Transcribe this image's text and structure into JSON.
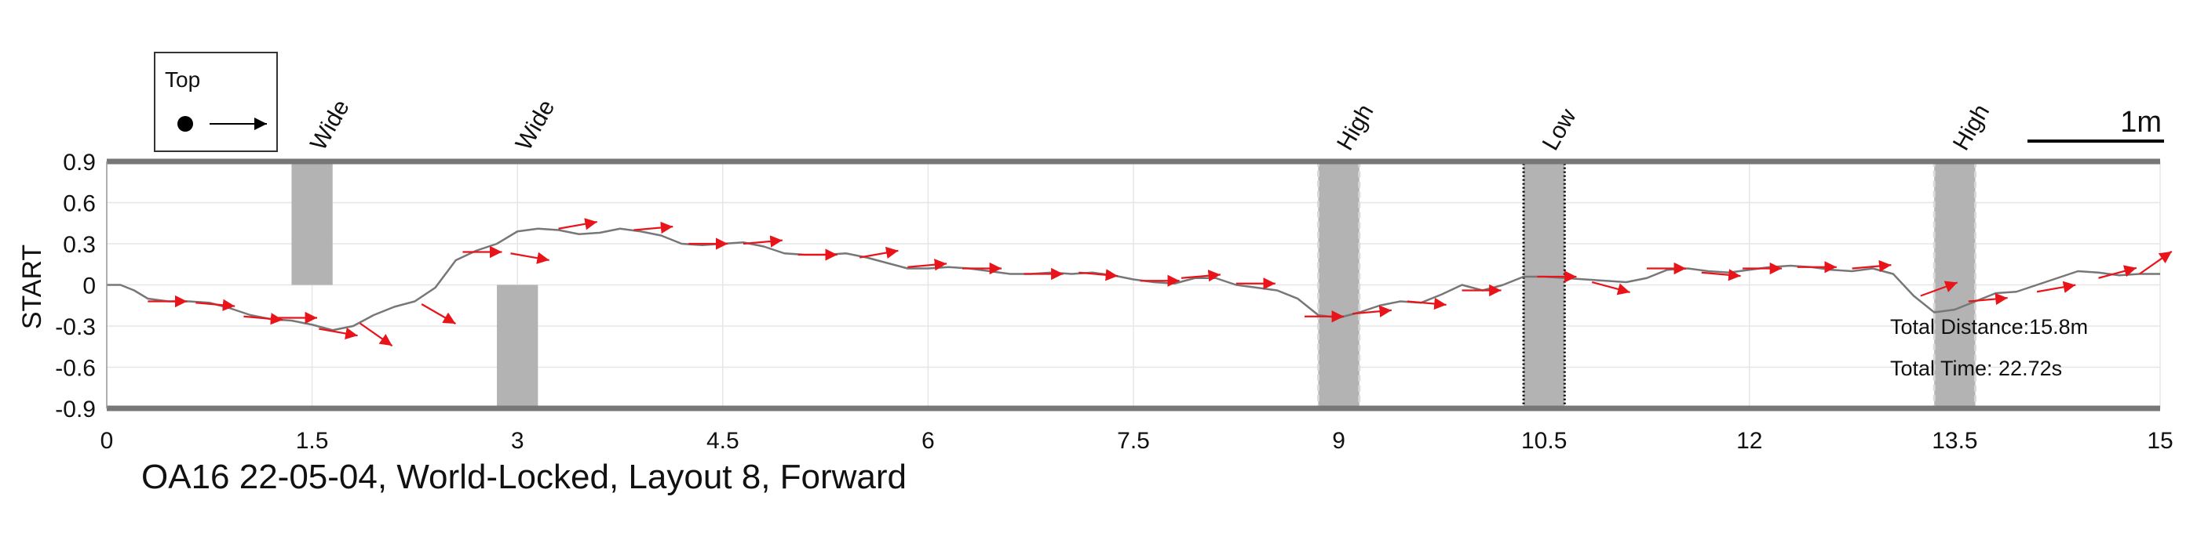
{
  "chart_data": {
    "type": "line",
    "title": "OA16 22-05-04, World-Locked, Layout 8, Forward",
    "ylabel": "START",
    "xlabel": "",
    "xlim": [
      0,
      15
    ],
    "ylim": [
      -0.9,
      0.9
    ],
    "x_ticks": [
      "0",
      "1.5",
      "3",
      "4.5",
      "6",
      "7.5",
      "9",
      "10.5",
      "12",
      "13.5",
      "15"
    ],
    "x_tick_values": [
      0,
      1.5,
      3,
      4.5,
      6,
      7.5,
      9,
      10.5,
      12,
      13.5,
      15
    ],
    "y_ticks": [
      "0.9",
      "0.6",
      "0.3",
      "0",
      "-0.3",
      "-0.6",
      "-0.9"
    ],
    "y_tick_values": [
      0.9,
      0.6,
      0.3,
      0,
      -0.3,
      -0.6,
      -0.9
    ],
    "grid": true,
    "legend": {
      "title": "Top",
      "placement": "top-left"
    },
    "scale_bar_label": "1m",
    "obstacles": [
      {
        "label": "Wide",
        "x_from": 1.35,
        "x_to": 1.65,
        "y_from": 0.0,
        "y_to": 0.9,
        "style": "solid"
      },
      {
        "label": "Wide",
        "x_from": 2.85,
        "x_to": 3.15,
        "y_from": -0.9,
        "y_to": 0.0,
        "style": "solid"
      },
      {
        "label": "High",
        "x_from": 8.85,
        "x_to": 9.15,
        "y_from": -0.9,
        "y_to": 0.9,
        "style": "dashed"
      },
      {
        "label": "Low",
        "x_from": 10.35,
        "x_to": 10.65,
        "y_from": -0.9,
        "y_to": 0.9,
        "style": "dotted"
      },
      {
        "label": "High",
        "x_from": 13.35,
        "x_to": 13.65,
        "y_from": -0.9,
        "y_to": 0.9,
        "style": "dashed"
      }
    ],
    "path": {
      "x": [
        0.0,
        0.1,
        0.2,
        0.3,
        0.45,
        0.6,
        0.75,
        0.9,
        1.05,
        1.2,
        1.35,
        1.5,
        1.65,
        1.8,
        1.95,
        2.1,
        2.25,
        2.4,
        2.55,
        2.7,
        2.85,
        3.0,
        3.15,
        3.3,
        3.45,
        3.6,
        3.75,
        3.9,
        4.05,
        4.2,
        4.35,
        4.5,
        4.65,
        4.8,
        4.95,
        5.1,
        5.25,
        5.4,
        5.55,
        5.7,
        5.85,
        6.0,
        6.15,
        6.3,
        6.45,
        6.6,
        6.75,
        6.9,
        7.05,
        7.2,
        7.35,
        7.5,
        7.65,
        7.8,
        7.95,
        8.1,
        8.25,
        8.4,
        8.55,
        8.7,
        8.85,
        9.0,
        9.15,
        9.3,
        9.45,
        9.6,
        9.75,
        9.9,
        10.05,
        10.2,
        10.35,
        10.5,
        10.65,
        10.8,
        10.95,
        11.1,
        11.25,
        11.4,
        11.55,
        11.7,
        11.85,
        12.0,
        12.15,
        12.3,
        12.45,
        12.6,
        12.75,
        12.9,
        13.05,
        13.2,
        13.35,
        13.5,
        13.65,
        13.8,
        13.95,
        14.1,
        14.25,
        14.4,
        14.55,
        14.7,
        14.85,
        15.0
      ],
      "y": [
        0.0,
        0.0,
        -0.04,
        -0.1,
        -0.12,
        -0.12,
        -0.13,
        -0.17,
        -0.22,
        -0.25,
        -0.26,
        -0.29,
        -0.33,
        -0.3,
        -0.22,
        -0.16,
        -0.12,
        -0.02,
        0.18,
        0.25,
        0.3,
        0.39,
        0.41,
        0.4,
        0.37,
        0.38,
        0.41,
        0.39,
        0.36,
        0.3,
        0.29,
        0.3,
        0.31,
        0.28,
        0.23,
        0.22,
        0.22,
        0.23,
        0.2,
        0.16,
        0.12,
        0.12,
        0.13,
        0.12,
        0.1,
        0.08,
        0.08,
        0.09,
        0.08,
        0.09,
        0.07,
        0.04,
        0.02,
        0.01,
        0.05,
        0.05,
        0.0,
        -0.02,
        -0.04,
        -0.1,
        -0.22,
        -0.24,
        -0.2,
        -0.15,
        -0.12,
        -0.13,
        -0.07,
        0.0,
        -0.04,
        0.0,
        0.06,
        0.06,
        0.05,
        0.04,
        0.03,
        0.02,
        0.05,
        0.11,
        0.12,
        0.1,
        0.09,
        0.11,
        0.13,
        0.14,
        0.13,
        0.11,
        0.1,
        0.12,
        0.08,
        -0.08,
        -0.2,
        -0.18,
        -0.12,
        -0.06,
        -0.05,
        0.0,
        0.05,
        0.1,
        0.09,
        0.07,
        0.08,
        0.08
      ]
    },
    "heading_arrows": {
      "x": [
        0.3,
        0.65,
        1.0,
        1.25,
        1.55,
        1.85,
        2.3,
        2.6,
        2.95,
        3.3,
        3.85,
        4.25,
        4.65,
        5.05,
        5.5,
        5.85,
        6.25,
        6.7,
        7.1,
        7.55,
        7.85,
        8.25,
        8.75,
        9.1,
        9.5,
        9.9,
        10.45,
        10.85,
        11.25,
        11.65,
        11.95,
        12.35,
        12.75,
        13.25,
        13.6,
        14.1,
        14.55,
        14.85
      ],
      "y": [
        -0.12,
        -0.13,
        -0.23,
        -0.24,
        -0.32,
        -0.28,
        -0.14,
        0.24,
        0.23,
        0.41,
        0.4,
        0.3,
        0.3,
        0.22,
        0.2,
        0.13,
        0.12,
        0.08,
        0.09,
        0.03,
        0.05,
        0.01,
        -0.23,
        -0.21,
        -0.12,
        -0.04,
        0.06,
        0.02,
        0.12,
        0.09,
        0.12,
        0.13,
        0.12,
        -0.08,
        -0.12,
        -0.05,
        0.05,
        0.08
      ],
      "heading_deg": [
        0,
        -5,
        -5,
        0,
        -10,
        -35,
        -30,
        0,
        -10,
        10,
        5,
        0,
        5,
        0,
        10,
        5,
        0,
        0,
        -5,
        0,
        5,
        0,
        0,
        5,
        -5,
        0,
        0,
        -15,
        0,
        -5,
        0,
        0,
        5,
        20,
        5,
        10,
        15,
        35
      ]
    },
    "annotations": [
      "Total Distance:15.8m",
      "Total Time: 22.72s"
    ]
  }
}
